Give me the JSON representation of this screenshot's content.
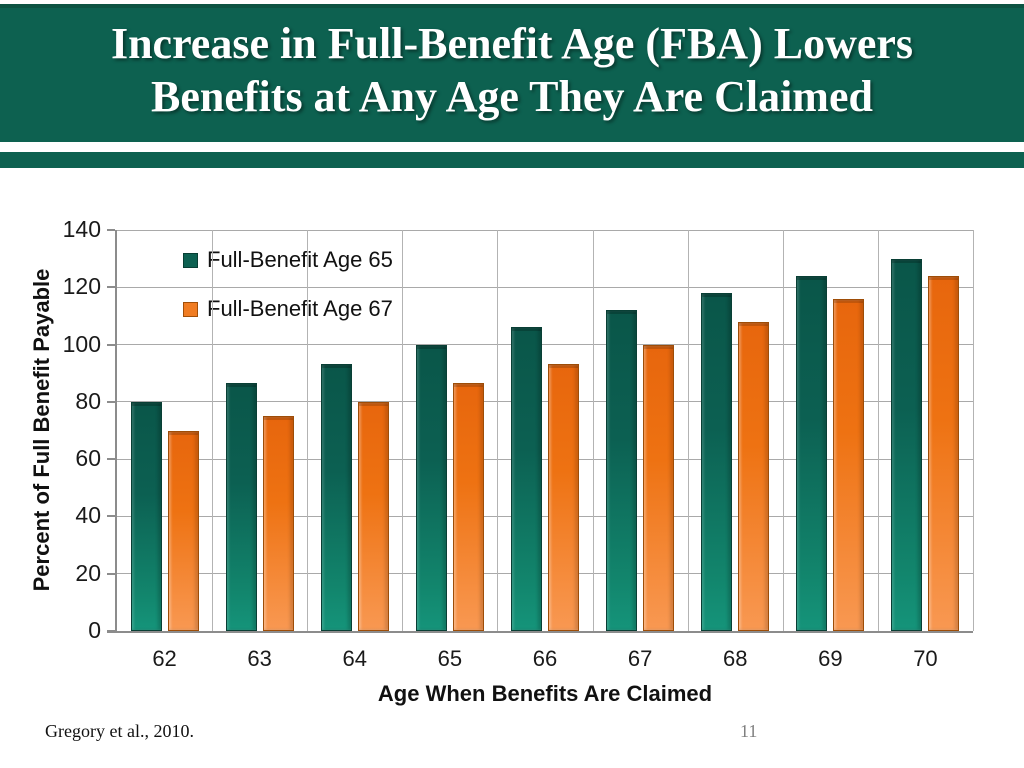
{
  "slide": {
    "title_line1": "Increase in Full-Benefit Age (FBA) Lowers",
    "title_line2": "Benefits at Any Age They Are Claimed",
    "footer_citation": "Gregory et al., 2010.",
    "page_number": "11",
    "colors": {
      "header_green": "#0d6150",
      "series_green": "#0d6152",
      "series_orange": "#f07c22"
    }
  },
  "chart_data": {
    "type": "bar",
    "title": "",
    "categories": [
      "62",
      "63",
      "64",
      "65",
      "66",
      "67",
      "68",
      "69",
      "70"
    ],
    "series": [
      {
        "name": "Full-Benefit Age 65",
        "color": "#0d6152",
        "values": [
          80,
          86.7,
          93.3,
          100,
          106,
          112,
          118,
          124,
          130
        ]
      },
      {
        "name": "Full-Benefit Age 67",
        "color": "#f07c22",
        "values": [
          70,
          75,
          80,
          86.7,
          93.3,
          100,
          108,
          116,
          124
        ]
      }
    ],
    "xlabel": "Age When Benefits Are Claimed",
    "ylabel": "Percent of Full Benefit Payable",
    "ylim": [
      0,
      140
    ],
    "ytick_step": 20,
    "yticks": [
      0,
      20,
      40,
      60,
      80,
      100,
      120,
      140
    ],
    "grid": true,
    "legend_position": "top-left-inside"
  }
}
